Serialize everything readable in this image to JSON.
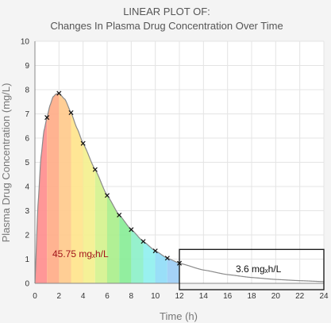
{
  "chart_data": {
    "type": "area",
    "title": "LINEAR PLOT OF:",
    "subtitle": "Changes In Plasma Drug Concentration Over Time",
    "xlabel": "Time (h)",
    "ylabel": "Plasma Drug Concentration (mg/L)",
    "xlim": [
      0,
      24
    ],
    "ylim": [
      0,
      10
    ],
    "x_ticks": [
      0,
      2,
      4,
      6,
      8,
      10,
      12,
      14,
      16,
      18,
      20,
      22,
      24
    ],
    "y_ticks": [
      0,
      1,
      2,
      3,
      4,
      5,
      6,
      7,
      8,
      9,
      10
    ],
    "grid": true,
    "series": [
      {
        "marker": "x",
        "x": [
          1,
          2,
          3,
          4,
          5,
          6,
          7,
          8,
          9,
          10,
          11,
          12
        ],
        "values": [
          6.85,
          7.85,
          7.05,
          5.78,
          4.7,
          3.63,
          2.82,
          2.22,
          1.73,
          1.34,
          1.04,
          0.83
        ]
      }
    ],
    "curve": {
      "x": [
        0,
        0.25,
        0.5,
        0.75,
        1,
        1.25,
        1.5,
        1.75,
        2,
        2.5,
        3,
        3.5,
        4,
        5,
        6,
        7,
        8,
        9,
        10,
        11,
        12,
        14,
        16,
        18,
        20,
        22,
        24
      ],
      "values": [
        0,
        3.2,
        5.2,
        6.3,
        6.85,
        7.35,
        7.7,
        7.82,
        7.85,
        7.6,
        7.05,
        6.4,
        5.78,
        4.7,
        3.63,
        2.82,
        2.22,
        1.73,
        1.34,
        1.04,
        0.83,
        0.55,
        0.36,
        0.24,
        0.16,
        0.11,
        0.07
      ]
    },
    "area_segment_colors": [
      "#ff8c8c",
      "#ffab85",
      "#ffc98a",
      "#ffe38a",
      "#f4f08c",
      "#d4f28c",
      "#a9ee8a",
      "#86ec95",
      "#8bf0c8",
      "#8eefee",
      "#8edcf7",
      "#9bcdf6"
    ],
    "annotations": [
      {
        "text": "45.75 mgₓh/L",
        "color": "#a1141b"
      },
      {
        "text": "3.6 mgₓh/L",
        "color": "#111111"
      }
    ],
    "tail_box": {
      "x_range": [
        12,
        24
      ],
      "y_range": [
        0,
        1.4
      ]
    }
  }
}
